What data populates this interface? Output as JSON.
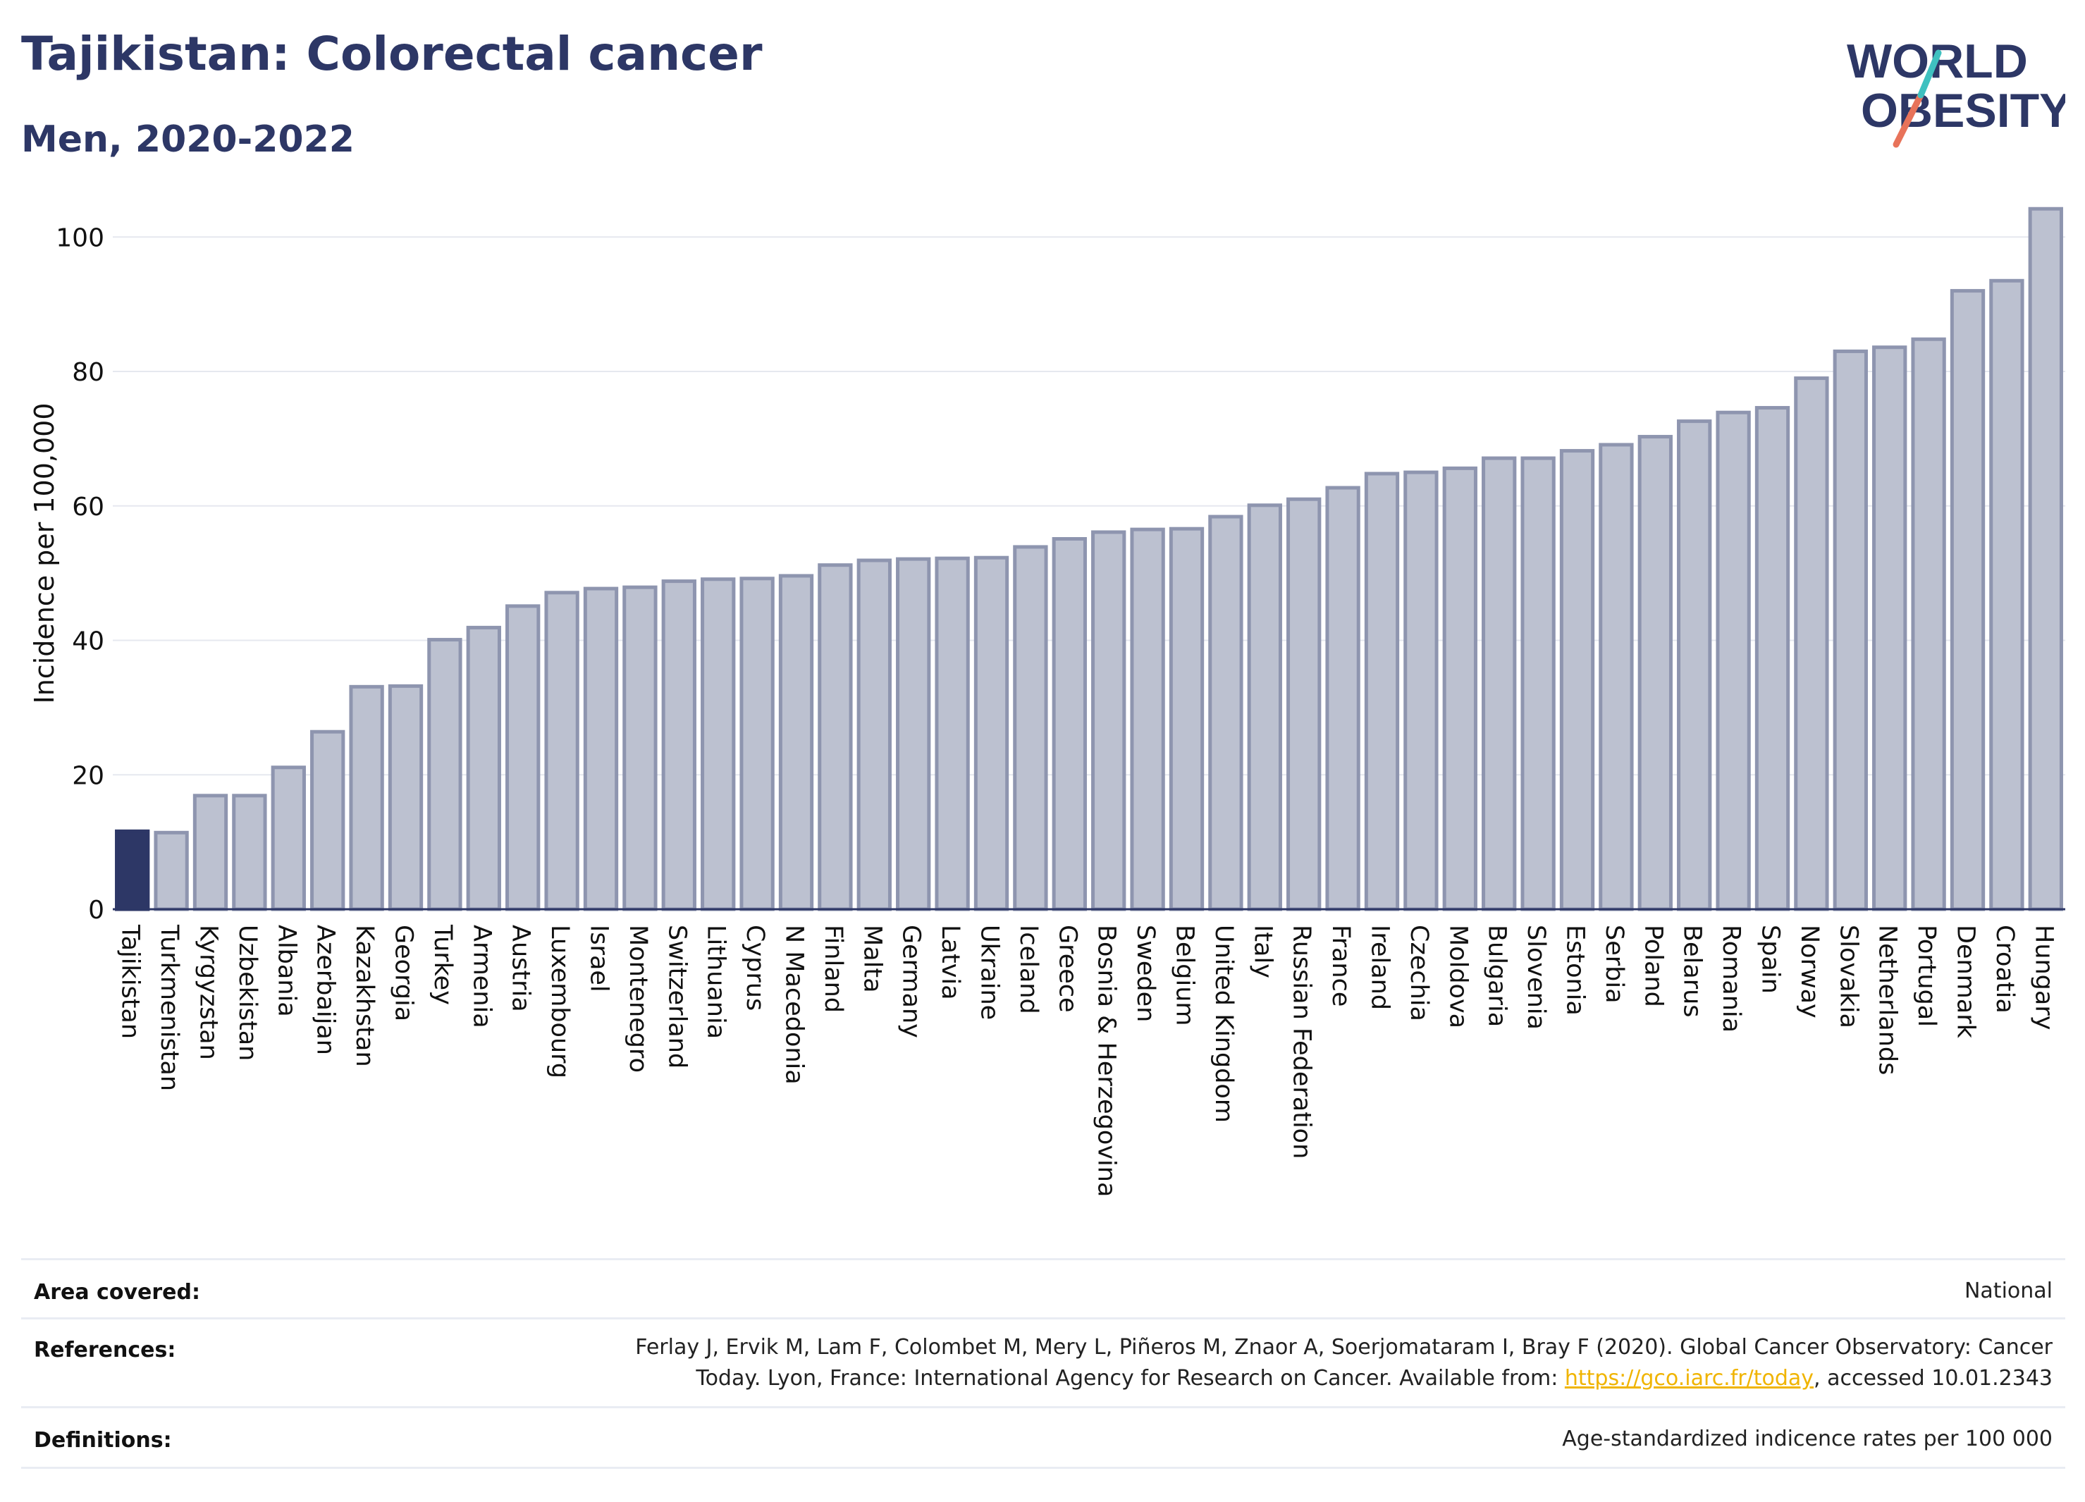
{
  "header": {
    "title": "Tajikistan: Colorectal cancer",
    "subtitle": "Men, 2020-2022"
  },
  "logo": {
    "line1": "WORLD",
    "line2": "OBESITY"
  },
  "colors": {
    "highlight": "#2d3766",
    "bar_fill": "#bcc1d0",
    "bar_stroke": "#8e95af",
    "title": "#2d3766",
    "link": "#f0b400"
  },
  "chart_data": {
    "type": "bar",
    "ylabel": "Incidence per 100,000",
    "ylim": [
      0,
      108
    ],
    "yticks": [
      0,
      20,
      40,
      60,
      80,
      100
    ],
    "grid": true,
    "highlight_category": "Tajikistan",
    "categories": [
      "Tajikistan",
      "Turkmenistan",
      "Kyrgyzstan",
      "Uzbekistan",
      "Albania",
      "Azerbaijan",
      "Kazakhstan",
      "Georgia",
      "Turkey",
      "Armenia",
      "Austria",
      "Luxembourg",
      "Israel",
      "Montenegro",
      "Switzerland",
      "Lithuania",
      "Cyprus",
      "N Macedonia",
      "Finland",
      "Malta",
      "Germany",
      "Latvia",
      "Ukraine",
      "Iceland",
      "Greece",
      "Bosnia & Herzegovina",
      "Sweden",
      "Belgium",
      "United Kingdom",
      "Italy",
      "Russian Federation",
      "France",
      "Ireland",
      "Czechia",
      "Moldova",
      "Bulgaria",
      "Slovenia",
      "Estonia",
      "Serbia",
      "Poland",
      "Belarus",
      "Romania",
      "Spain",
      "Norway",
      "Slovakia",
      "Netherlands",
      "Portugal",
      "Denmark",
      "Croatia",
      "Hungary"
    ],
    "values": [
      11.6,
      11.4,
      16.9,
      16.9,
      21.1,
      26.4,
      33.1,
      33.2,
      40.1,
      41.9,
      45.1,
      47.1,
      47.7,
      47.9,
      48.8,
      49.1,
      49.2,
      49.6,
      51.2,
      51.9,
      52.1,
      52.2,
      52.3,
      53.9,
      55.1,
      56.1,
      56.5,
      56.6,
      58.4,
      60.1,
      61.0,
      62.7,
      64.8,
      65.0,
      65.6,
      67.1,
      67.1,
      68.2,
      69.1,
      70.3,
      72.6,
      73.9,
      74.6,
      79.0,
      83.0,
      83.6,
      84.8,
      92.0,
      93.5,
      104.2
    ]
  },
  "info": {
    "area_label": "Area covered:",
    "area_value": "National",
    "references_label": "References:",
    "references_line1": "Ferlay J, Ervik M, Lam F, Colombet M, Mery L, Piñeros M, Znaor A, Soerjomataram I, Bray F (2020). Global Cancer Observatory: Cancer",
    "references_line2_pre": "Today. Lyon, France: International Agency for Research on Cancer. Available from: ",
    "references_link": "https://gco.iarc.fr/today",
    "references_line2_post": ", accessed 10.01.2343",
    "definitions_label": "Definitions:",
    "definitions_value": "Age-standardized indicence rates per 100 000"
  }
}
